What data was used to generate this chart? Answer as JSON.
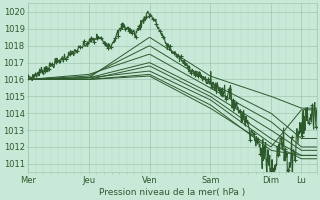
{
  "title": "Pression niveau de la mer( hPa )",
  "bg_color": "#c8e8d8",
  "grid_major_color": "#a0c8b0",
  "grid_minor_color": "#b8dcc8",
  "line_color": "#2d5a2d",
  "x_labels": [
    "Mer",
    "Jeu",
    "Ven",
    "Sam",
    "Dim",
    "Lu"
  ],
  "x_ticks": [
    0,
    48,
    96,
    144,
    192,
    216
  ],
  "ylim": [
    1010.5,
    1020.5
  ],
  "yticks": [
    1011,
    1012,
    1013,
    1014,
    1015,
    1016,
    1017,
    1018,
    1019,
    1020
  ],
  "total_hours": 228,
  "smooth_series": [
    {
      "waypoints": [
        [
          0,
          1016.0
        ],
        [
          48,
          1016.1
        ],
        [
          96,
          1018.5
        ],
        [
          144,
          1016.2
        ],
        [
          192,
          1015.0
        ],
        [
          216,
          1014.3
        ]
      ]
    },
    {
      "waypoints": [
        [
          0,
          1016.0
        ],
        [
          48,
          1016.2
        ],
        [
          96,
          1018.0
        ],
        [
          144,
          1015.8
        ],
        [
          192,
          1014.0
        ],
        [
          216,
          1012.5
        ]
      ]
    },
    {
      "waypoints": [
        [
          0,
          1016.0
        ],
        [
          48,
          1016.3
        ],
        [
          96,
          1017.5
        ],
        [
          144,
          1015.5
        ],
        [
          192,
          1013.5
        ],
        [
          216,
          1012.0
        ]
      ]
    },
    {
      "waypoints": [
        [
          0,
          1016.0
        ],
        [
          48,
          1016.1
        ],
        [
          96,
          1017.0
        ],
        [
          144,
          1015.2
        ],
        [
          192,
          1013.0
        ],
        [
          216,
          1011.8
        ]
      ]
    },
    {
      "waypoints": [
        [
          0,
          1016.0
        ],
        [
          48,
          1016.0
        ],
        [
          96,
          1016.8
        ],
        [
          144,
          1015.0
        ],
        [
          192,
          1012.5
        ],
        [
          216,
          1011.5
        ]
      ]
    },
    {
      "waypoints": [
        [
          0,
          1016.0
        ],
        [
          48,
          1016.1
        ],
        [
          96,
          1016.5
        ],
        [
          144,
          1014.8
        ],
        [
          192,
          1012.2
        ],
        [
          216,
          1011.3
        ]
      ]
    },
    {
      "waypoints": [
        [
          0,
          1016.0
        ],
        [
          48,
          1016.0
        ],
        [
          96,
          1016.3
        ],
        [
          144,
          1014.5
        ],
        [
          192,
          1011.8
        ],
        [
          216,
          1011.5
        ]
      ]
    },
    {
      "waypoints": [
        [
          0,
          1016.0
        ],
        [
          48,
          1016.0
        ],
        [
          96,
          1016.2
        ],
        [
          144,
          1014.3
        ],
        [
          192,
          1012.0
        ],
        [
          216,
          1014.2
        ]
      ]
    }
  ]
}
